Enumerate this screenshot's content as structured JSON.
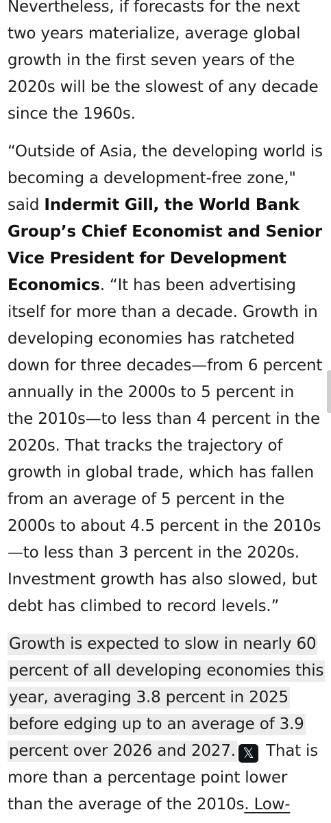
{
  "article": {
    "p1": "Nevertheless, if forecasts for the next two years materialize, average global growth in the first seven years of the 2020s will be the slowest of any decade since the 1960s.",
    "p2_quote_open": "“Outside of Asia, the developing world is becoming a development-free zone,\" said ",
    "p2_speaker": "Indermit Gill, the World Bank Group’s Chief Economist and Senior Vice President for Development Economics",
    "p2_quote_body": ". “It has been advertising itself for more than a decade. Growth in developing economies has ratcheted down for three decades—from 6 percent annually in the 2000s to 5 percent in the 2010s—to less than 4 percent in the 2020s. That tracks the trajectory of growth in global trade, which has fallen from an average of 5 percent in the 2000s to about 4.5 percent in the 2010s—to less than 3 percent in the 2020s. Investment growth has also slowed, but debt has climbed to record levels.”",
    "p3_highlighted": "Growth is expected to slow in nearly 60 percent of all developing economies this year, averaging 3.8 percent in 2025 before edging up to an average of 3.9 percent over 2026 and 2027.",
    "x_icon_glyph": "𝕏",
    "p3_rest": " That is more than a percentage point lower than the average of the 2010s",
    "p3_link": ". Low-"
  },
  "icons": {
    "share_on_x": "x-share-icon"
  }
}
